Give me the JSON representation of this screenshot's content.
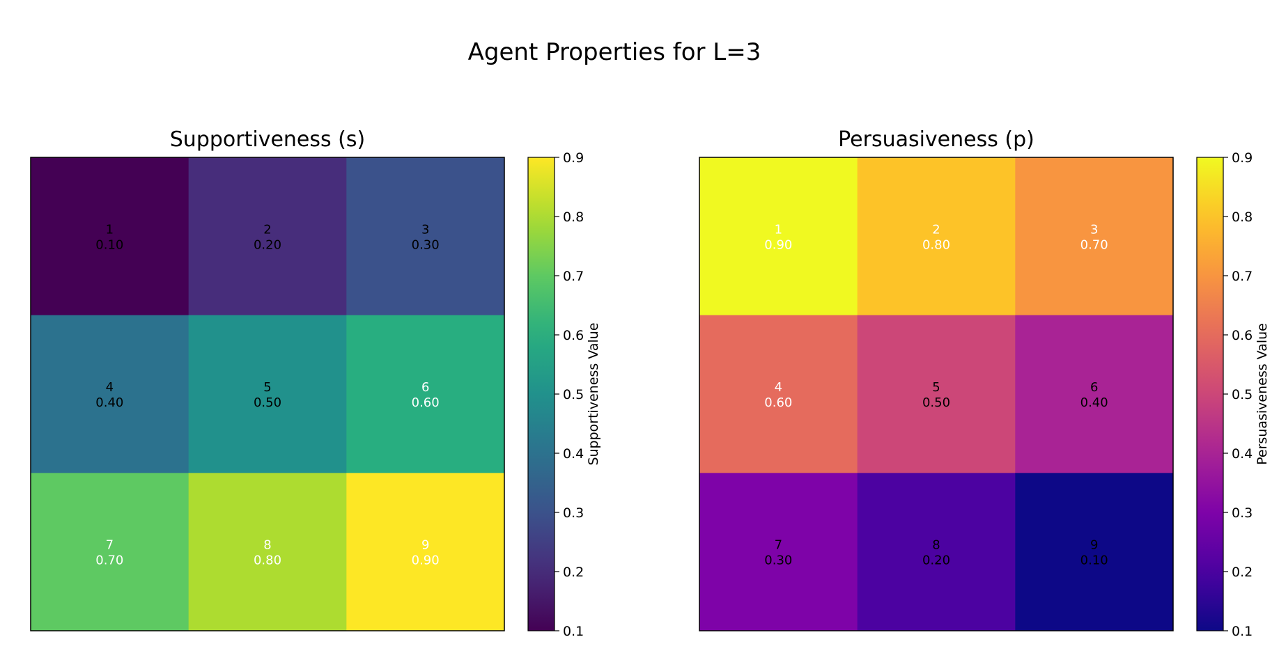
{
  "figure": {
    "title": "Agent Properties for L=3"
  },
  "chart_data": [
    {
      "type": "heatmap",
      "title": "Supportiveness (s)",
      "colormap": "viridis",
      "rows": 3,
      "cols": 3,
      "cells": [
        {
          "id": "1",
          "value": 0.1
        },
        {
          "id": "2",
          "value": 0.2
        },
        {
          "id": "3",
          "value": 0.3
        },
        {
          "id": "4",
          "value": 0.4
        },
        {
          "id": "5",
          "value": 0.5
        },
        {
          "id": "6",
          "value": 0.6
        },
        {
          "id": "7",
          "value": 0.7
        },
        {
          "id": "8",
          "value": 0.8
        },
        {
          "id": "9",
          "value": 0.9
        }
      ],
      "vmin": 0.1,
      "vmax": 0.9,
      "colorbar": {
        "label": "Supportiveness Value",
        "ticks": [
          0.1,
          0.2,
          0.3,
          0.4,
          0.5,
          0.6,
          0.7,
          0.8,
          0.9
        ],
        "tick_labels": [
          "0.1",
          "0.2",
          "0.3",
          "0.4",
          "0.5",
          "0.6",
          "0.7",
          "0.8",
          "0.9"
        ]
      },
      "axes_ticks": false
    },
    {
      "type": "heatmap",
      "title": "Persuasiveness (p)",
      "colormap": "plasma",
      "rows": 3,
      "cols": 3,
      "cells": [
        {
          "id": "1",
          "value": 0.9
        },
        {
          "id": "2",
          "value": 0.8
        },
        {
          "id": "3",
          "value": 0.7
        },
        {
          "id": "4",
          "value": 0.6
        },
        {
          "id": "5",
          "value": 0.5
        },
        {
          "id": "6",
          "value": 0.4
        },
        {
          "id": "7",
          "value": 0.3
        },
        {
          "id": "8",
          "value": 0.2
        },
        {
          "id": "9",
          "value": 0.1
        }
      ],
      "vmin": 0.1,
      "vmax": 0.9,
      "colorbar": {
        "label": "Persuasiveness Value",
        "ticks": [
          0.1,
          0.2,
          0.3,
          0.4,
          0.5,
          0.6,
          0.7,
          0.8,
          0.9
        ],
        "tick_labels": [
          "0.1",
          "0.2",
          "0.3",
          "0.4",
          "0.5",
          "0.6",
          "0.7",
          "0.8",
          "0.9"
        ]
      },
      "axes_ticks": false
    }
  ]
}
